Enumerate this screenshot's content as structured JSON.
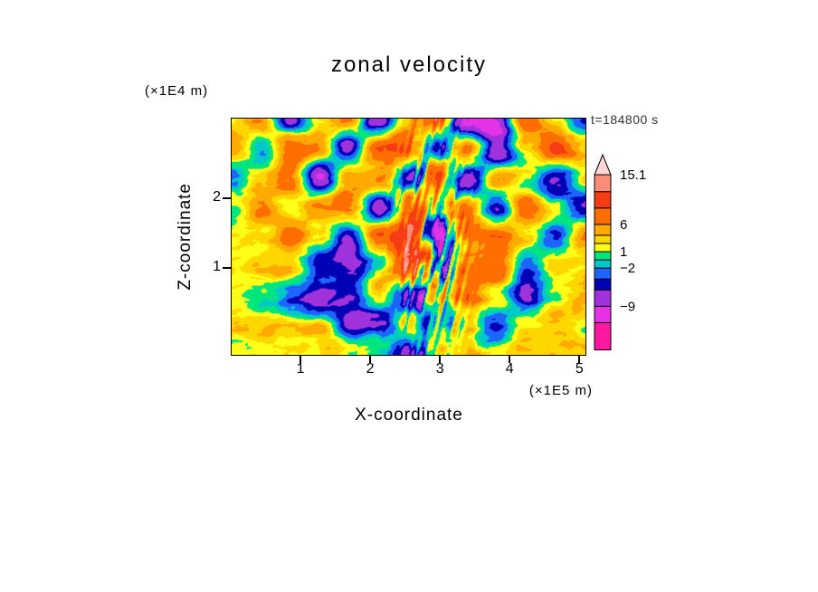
{
  "chart_data": {
    "type": "heatmap",
    "title": "zonal velocity",
    "xlabel": "X-coordinate",
    "ylabel": "Z-coordinate",
    "x_units": "(×1E5 m)",
    "y_units": "(×1E4 m)",
    "time_label": "t=184800 s",
    "xlim": [
      0,
      5.1
    ],
    "ylim": [
      -0.26,
      3.15
    ],
    "x_ticks": [
      1,
      2,
      3,
      4,
      5
    ],
    "y_ticks": [
      1,
      2
    ],
    "grid": "off",
    "legend_position": "right-colorbar",
    "levels": [
      -17,
      -12,
      -9,
      -6,
      -4,
      -2,
      -0.5,
      1,
      2.5,
      4,
      6,
      9,
      12,
      15.1,
      17
    ],
    "colors": [
      "#FF19A0",
      "#E632E6",
      "#A032DC",
      "#0000B4",
      "#1E64FF",
      "#00C8C8",
      "#00E67D",
      "#FFFF19",
      "#FFD700",
      "#FFAA00",
      "#FF6E00",
      "#F53C14",
      "#FA8C78",
      "#FFD7D7"
    ],
    "colorbar_labels": [
      {
        "value": 15.1,
        "label": "15.1"
      },
      {
        "value": 6,
        "label": "6"
      },
      {
        "value": 1,
        "label": "1"
      },
      {
        "value": -2,
        "label": "−2"
      },
      {
        "value": -9,
        "label": "−9"
      }
    ],
    "field_grid": {
      "description": "approximate zonal velocity values read from the filled-contour field, rows top (z=3.0) to bottom (z=0.25)",
      "x": [
        0,
        0.42,
        0.85,
        1.27,
        1.7,
        2.12,
        2.55,
        2.97,
        3.4,
        3.82,
        4.25,
        4.67,
        5.1
      ],
      "z": [
        3.0,
        2.6,
        2.3,
        1.95,
        1.6,
        1.3,
        0.95,
        0.6,
        0.25
      ],
      "values": [
        [
          3,
          7,
          -5,
          4,
          8,
          -6,
          3,
          8,
          -7,
          -7,
          8,
          3,
          -4
        ],
        [
          6,
          -2,
          8,
          8,
          -6,
          8,
          8,
          -6,
          8,
          -7,
          3,
          8,
          2
        ],
        [
          -3,
          3,
          8,
          -7,
          8,
          8,
          -5,
          8,
          -6,
          8,
          2,
          -6,
          3
        ],
        [
          3,
          8,
          2,
          8,
          8,
          -6,
          8,
          3,
          8,
          -5,
          8,
          3,
          -3
        ],
        [
          2,
          3,
          8,
          2,
          -6,
          8,
          11,
          -9,
          8,
          8,
          3,
          -5,
          3
        ],
        [
          1,
          2,
          3,
          -6,
          -7,
          2,
          13,
          -7,
          8,
          8,
          -5,
          3,
          2
        ],
        [
          3,
          1,
          -3,
          -7,
          -6,
          3,
          -7,
          3,
          8,
          3,
          -6,
          1,
          3
        ],
        [
          3,
          2,
          1,
          2,
          -6,
          -4,
          3,
          -3,
          1,
          -6,
          1,
          2,
          1
        ],
        [
          1,
          3,
          2,
          1,
          2,
          3,
          -4,
          2,
          3,
          1,
          2,
          3,
          2
        ]
      ]
    }
  }
}
